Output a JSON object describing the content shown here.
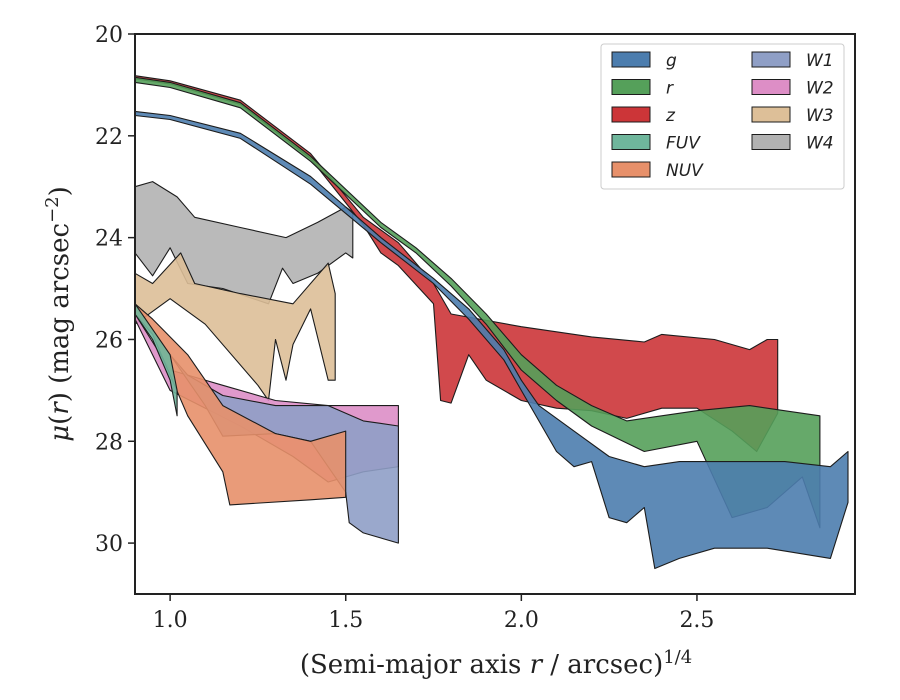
{
  "chart_data": {
    "type": "area",
    "xlabel": "(Semi-major axis r / arcsec)^{1/4}",
    "ylabel": "μ(r) (mag arcsec^{-2})",
    "xlim": [
      0.9,
      2.95
    ],
    "ylim": [
      31.0,
      20.0
    ],
    "y_inverted": true,
    "x_ticks": [
      "1.0",
      "1.5",
      "2.0",
      "2.5"
    ],
    "x_tick_values": [
      1.0,
      1.5,
      2.0,
      2.5
    ],
    "y_ticks": [
      "20",
      "22",
      "24",
      "26",
      "28",
      "30"
    ],
    "y_tick_values": [
      20,
      22,
      24,
      26,
      28,
      30
    ],
    "grid": false,
    "legend_position": "top-right",
    "series": [
      {
        "name": "g",
        "color": "#4c7dae",
        "upper": [
          [
            0.9,
            21.52
          ],
          [
            1.0,
            21.6
          ],
          [
            1.2,
            21.95
          ],
          [
            1.4,
            22.8
          ],
          [
            1.6,
            24.0
          ],
          [
            1.75,
            24.8
          ],
          [
            1.85,
            25.4
          ],
          [
            1.95,
            26.2
          ],
          [
            2.0,
            26.8
          ],
          [
            2.05,
            27.3
          ],
          [
            2.15,
            27.8
          ],
          [
            2.25,
            28.3
          ],
          [
            2.35,
            28.5
          ],
          [
            2.45,
            28.4
          ],
          [
            2.6,
            28.4
          ],
          [
            2.75,
            28.4
          ],
          [
            2.88,
            28.5
          ],
          [
            2.93,
            28.2
          ]
        ],
        "lower": [
          [
            0.9,
            21.6
          ],
          [
            1.0,
            21.68
          ],
          [
            1.2,
            22.05
          ],
          [
            1.4,
            22.95
          ],
          [
            1.6,
            24.1
          ],
          [
            1.75,
            24.9
          ],
          [
            1.85,
            25.6
          ],
          [
            1.95,
            26.4
          ],
          [
            2.0,
            27.0
          ],
          [
            2.05,
            27.6
          ],
          [
            2.1,
            28.2
          ],
          [
            2.15,
            28.5
          ],
          [
            2.2,
            28.4
          ],
          [
            2.25,
            29.5
          ],
          [
            2.3,
            29.6
          ],
          [
            2.35,
            29.3
          ],
          [
            2.38,
            30.5
          ],
          [
            2.45,
            30.3
          ],
          [
            2.55,
            30.1
          ],
          [
            2.7,
            30.1
          ],
          [
            2.88,
            30.3
          ],
          [
            2.93,
            29.2
          ]
        ]
      },
      {
        "name": "r",
        "color": "#55a05a",
        "upper": [
          [
            0.9,
            20.85
          ],
          [
            1.0,
            20.95
          ],
          [
            1.2,
            21.35
          ],
          [
            1.4,
            22.4
          ],
          [
            1.6,
            23.7
          ],
          [
            1.7,
            24.2
          ],
          [
            1.8,
            24.8
          ],
          [
            1.9,
            25.5
          ],
          [
            2.0,
            26.3
          ],
          [
            2.1,
            26.9
          ],
          [
            2.2,
            27.3
          ],
          [
            2.3,
            27.6
          ],
          [
            2.5,
            27.4
          ],
          [
            2.65,
            27.3
          ],
          [
            2.85,
            27.5
          ]
        ],
        "lower": [
          [
            0.9,
            20.95
          ],
          [
            1.0,
            21.05
          ],
          [
            1.2,
            21.45
          ],
          [
            1.4,
            22.5
          ],
          [
            1.6,
            23.8
          ],
          [
            1.7,
            24.3
          ],
          [
            1.8,
            24.95
          ],
          [
            1.9,
            25.7
          ],
          [
            2.0,
            26.6
          ],
          [
            2.1,
            27.2
          ],
          [
            2.2,
            27.7
          ],
          [
            2.35,
            28.2
          ],
          [
            2.5,
            28.0
          ],
          [
            2.6,
            29.5
          ],
          [
            2.7,
            29.3
          ],
          [
            2.8,
            28.7
          ],
          [
            2.85,
            29.7
          ]
        ]
      },
      {
        "name": "z",
        "color": "#cc3538",
        "upper": [
          [
            0.9,
            20.82
          ],
          [
            1.0,
            20.92
          ],
          [
            1.2,
            21.3
          ],
          [
            1.4,
            22.35
          ],
          [
            1.55,
            23.6
          ],
          [
            1.65,
            24.1
          ],
          [
            1.75,
            24.9
          ],
          [
            1.8,
            25.5
          ],
          [
            2.0,
            25.75
          ],
          [
            2.2,
            25.95
          ],
          [
            2.35,
            26.05
          ],
          [
            2.4,
            25.9
          ],
          [
            2.55,
            26.0
          ],
          [
            2.65,
            26.2
          ],
          [
            2.7,
            26.0
          ],
          [
            2.73,
            26.0
          ]
        ],
        "lower": [
          [
            0.9,
            20.88
          ],
          [
            1.0,
            20.98
          ],
          [
            1.2,
            21.38
          ],
          [
            1.4,
            22.45
          ],
          [
            1.55,
            23.75
          ],
          [
            1.6,
            24.3
          ],
          [
            1.65,
            24.55
          ],
          [
            1.75,
            25.3
          ],
          [
            1.77,
            27.2
          ],
          [
            1.8,
            27.25
          ],
          [
            1.85,
            26.3
          ],
          [
            1.9,
            26.8
          ],
          [
            2.0,
            27.2
          ],
          [
            2.1,
            27.35
          ],
          [
            2.2,
            27.4
          ],
          [
            2.3,
            27.55
          ],
          [
            2.4,
            27.35
          ],
          [
            2.5,
            27.35
          ],
          [
            2.6,
            27.8
          ],
          [
            2.67,
            28.2
          ],
          [
            2.73,
            27.45
          ]
        ]
      },
      {
        "name": "FUV",
        "color": "#6fb69c",
        "upper": [
          [
            0.9,
            25.3
          ],
          [
            0.95,
            25.8
          ],
          [
            1.0,
            26.3
          ],
          [
            1.02,
            27.0
          ]
        ],
        "lower": [
          [
            0.9,
            25.5
          ],
          [
            0.95,
            26.0
          ],
          [
            1.0,
            26.8
          ],
          [
            1.02,
            27.5
          ]
        ]
      },
      {
        "name": "NUV",
        "color": "#e7906a",
        "upper": [
          [
            0.9,
            25.3
          ],
          [
            0.95,
            25.6
          ],
          [
            1.05,
            26.3
          ],
          [
            1.15,
            27.3
          ],
          [
            1.3,
            27.85
          ],
          [
            1.4,
            28.0
          ],
          [
            1.5,
            27.8
          ]
        ],
        "lower": [
          [
            0.9,
            25.5
          ],
          [
            0.95,
            25.9
          ],
          [
            1.05,
            27.5
          ],
          [
            1.15,
            28.6
          ],
          [
            1.17,
            29.25
          ],
          [
            1.4,
            29.15
          ],
          [
            1.5,
            29.1
          ]
        ]
      },
      {
        "name": "W1",
        "color": "#8f9fc6",
        "upper": [
          [
            1.0,
            26.3
          ],
          [
            1.05,
            26.7
          ],
          [
            1.15,
            27.1
          ],
          [
            1.3,
            27.3
          ],
          [
            1.45,
            27.3
          ],
          [
            1.55,
            27.6
          ],
          [
            1.65,
            27.7
          ]
        ],
        "lower": [
          [
            1.0,
            26.3
          ],
          [
            1.1,
            27.3
          ],
          [
            1.15,
            27.9
          ],
          [
            1.3,
            27.85
          ],
          [
            1.4,
            28.0
          ],
          [
            1.5,
            29.0
          ],
          [
            1.51,
            29.6
          ],
          [
            1.55,
            29.8
          ],
          [
            1.65,
            30.0
          ]
        ]
      },
      {
        "name": "W2",
        "color": "#dd8ec6",
        "upper": [
          [
            0.9,
            25.5
          ],
          [
            1.0,
            26.6
          ],
          [
            1.15,
            26.9
          ],
          [
            1.3,
            27.2
          ],
          [
            1.45,
            27.3
          ],
          [
            1.65,
            27.3
          ]
        ],
        "lower": [
          [
            0.9,
            25.6
          ],
          [
            1.0,
            27.0
          ],
          [
            1.2,
            27.7
          ],
          [
            1.35,
            28.3
          ],
          [
            1.45,
            28.8
          ],
          [
            1.55,
            28.6
          ],
          [
            1.65,
            28.5
          ]
        ]
      },
      {
        "name": "W3",
        "color": "#ddbf98",
        "upper": [
          [
            0.9,
            24.7
          ],
          [
            0.95,
            24.9
          ],
          [
            1.03,
            24.3
          ],
          [
            1.07,
            24.9
          ],
          [
            1.2,
            25.1
          ],
          [
            1.35,
            25.3
          ],
          [
            1.45,
            24.5
          ],
          [
            1.47,
            25.1
          ]
        ],
        "lower": [
          [
            0.9,
            25.7
          ],
          [
            1.0,
            25.2
          ],
          [
            1.1,
            25.7
          ],
          [
            1.25,
            26.9
          ],
          [
            1.28,
            27.2
          ],
          [
            1.3,
            26.0
          ],
          [
            1.33,
            26.8
          ],
          [
            1.35,
            26.1
          ],
          [
            1.4,
            25.4
          ],
          [
            1.45,
            26.8
          ],
          [
            1.47,
            26.8
          ]
        ]
      },
      {
        "name": "W4",
        "color": "#b2b2b2",
        "upper": [
          [
            0.9,
            23.0
          ],
          [
            0.95,
            22.9
          ],
          [
            1.02,
            23.2
          ],
          [
            1.07,
            23.6
          ],
          [
            1.2,
            23.8
          ],
          [
            1.33,
            24.0
          ],
          [
            1.42,
            23.7
          ],
          [
            1.5,
            23.4
          ],
          [
            1.52,
            23.5
          ]
        ],
        "lower": [
          [
            0.9,
            24.3
          ],
          [
            0.95,
            24.75
          ],
          [
            1.0,
            24.2
          ],
          [
            1.05,
            24.9
          ],
          [
            1.15,
            25.0
          ],
          [
            1.28,
            25.3
          ],
          [
            1.32,
            24.6
          ],
          [
            1.35,
            24.9
          ],
          [
            1.42,
            24.7
          ],
          [
            1.5,
            24.3
          ],
          [
            1.52,
            24.4
          ]
        ]
      }
    ]
  }
}
